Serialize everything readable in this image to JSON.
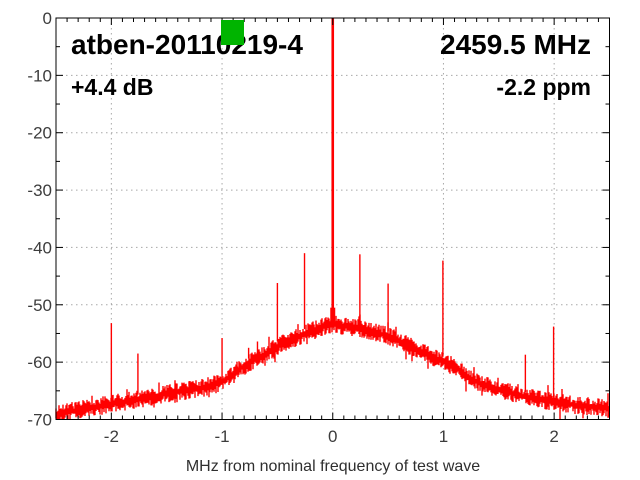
{
  "overlay": {
    "title": "atben-20110219-4",
    "frequency": "2459.5 MHz",
    "gain": "+4.4 dB",
    "ppm_offset": "-2.2 ppm"
  },
  "colors": {
    "background": "#ffffff",
    "trace": "#ff0000",
    "grid": "#a8a8a8",
    "border": "#000000",
    "tick_label": "#3c3c3c",
    "overlay_text": "#000000",
    "marker_green": "#00b400"
  },
  "green_marker": {
    "shape": "square",
    "color": "#00b400"
  },
  "chart_data": {
    "type": "line",
    "title": "atben-20110219-4",
    "center_frequency": "2459.5 MHz",
    "level_offset": "+4.4 dB",
    "frequency_offset": "-2.2 ppm",
    "xlabel": "MHz from nominal frequency of test wave",
    "ylabel": "",
    "x_unit": "MHz",
    "y_unit": "dB",
    "xlim": [
      -2.5,
      2.5
    ],
    "ylim": [
      -70,
      0
    ],
    "x_ticks": [
      -2,
      -1,
      0,
      1,
      2
    ],
    "x_tick_labels": [
      "-2",
      "-1",
      "0",
      "1",
      "2"
    ],
    "x_minor_tick_step": 0.1,
    "y_ticks": [
      0,
      -10,
      -20,
      -30,
      -40,
      -50,
      -60,
      -70
    ],
    "y_tick_labels": [
      "0",
      "-10",
      "-20",
      "-30",
      "-40",
      "-50",
      "-60",
      "-70"
    ],
    "y_minor_tick_step": 5,
    "grid": "dotted at major ticks",
    "legend": "none",
    "trace_color": "#ff0000",
    "noise_band_halfwidth_db": 1.0,
    "noise_floor_db": [
      [
        -2.5,
        -69.2
      ],
      [
        -2.35,
        -68.5
      ],
      [
        -2.2,
        -68.0
      ],
      [
        -2.0,
        -67.3
      ],
      [
        -1.8,
        -66.6
      ],
      [
        -1.6,
        -65.9
      ],
      [
        -1.45,
        -65.3
      ],
      [
        -1.3,
        -64.9
      ],
      [
        -1.15,
        -64.4
      ],
      [
        -1.0,
        -63.5
      ],
      [
        -0.9,
        -62.2
      ],
      [
        -0.8,
        -60.6
      ],
      [
        -0.7,
        -59.5
      ],
      [
        -0.6,
        -58.5
      ],
      [
        -0.5,
        -57.2
      ],
      [
        -0.4,
        -56.3
      ],
      [
        -0.3,
        -55.4
      ],
      [
        -0.2,
        -54.6
      ],
      [
        -0.1,
        -53.9
      ],
      [
        0.0,
        -53.4
      ],
      [
        0.1,
        -53.7
      ],
      [
        0.2,
        -54.0
      ],
      [
        0.3,
        -54.4
      ],
      [
        0.4,
        -54.9
      ],
      [
        0.5,
        -55.4
      ],
      [
        0.6,
        -56.3
      ],
      [
        0.7,
        -57.3
      ],
      [
        0.8,
        -58.2
      ],
      [
        0.9,
        -59.1
      ],
      [
        1.0,
        -59.9
      ],
      [
        1.1,
        -60.8
      ],
      [
        1.2,
        -62.2
      ],
      [
        1.3,
        -63.4
      ],
      [
        1.4,
        -64.2
      ],
      [
        1.55,
        -65.0
      ],
      [
        1.7,
        -65.9
      ],
      [
        1.85,
        -66.4
      ],
      [
        2.0,
        -67.0
      ],
      [
        2.2,
        -67.5
      ],
      [
        2.35,
        -67.8
      ],
      [
        2.5,
        -68.1
      ]
    ],
    "spurs_db": [
      [
        -2.0,
        -53.2
      ],
      [
        -1.76,
        -58.5
      ],
      [
        -1.0,
        -55.8
      ],
      [
        -0.86,
        -61.4
      ],
      [
        -0.76,
        -57.5
      ],
      [
        -0.68,
        -56.4
      ],
      [
        -0.5,
        -46.2
      ],
      [
        -0.255,
        -41.0
      ],
      [
        0.245,
        -41.2
      ],
      [
        0.5,
        -46.3
      ],
      [
        0.74,
        -57.4
      ],
      [
        0.995,
        -42.3
      ],
      [
        1.74,
        -58.7
      ],
      [
        1.995,
        -53.8
      ]
    ],
    "carrier": {
      "x_mhz": 0.0,
      "peak_db": 0,
      "pedestal_db": -50.5
    }
  }
}
